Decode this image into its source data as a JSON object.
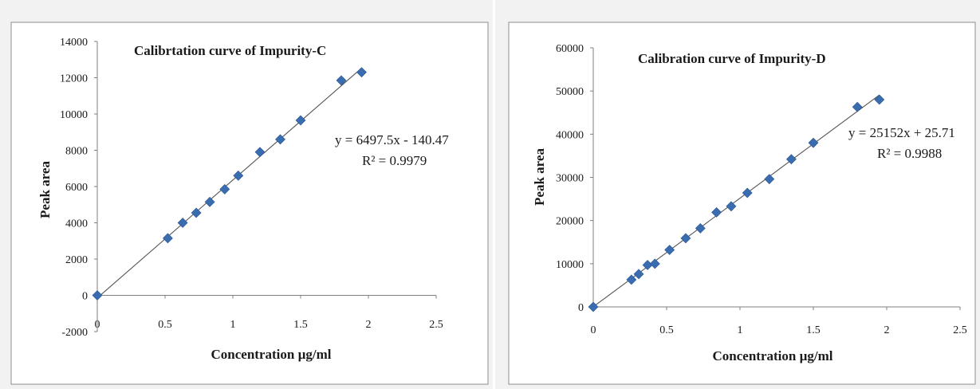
{
  "chart_data": [
    {
      "type": "scatter",
      "title": "Calibrtation curve of Impurity-C",
      "xlabel": "Concentration µg/ml",
      "ylabel": "Peak area",
      "xlim": [
        0,
        2.5
      ],
      "ylim": [
        -2000,
        14000
      ],
      "x_ticks": [
        "0",
        "0.5",
        "1",
        "1.5",
        "2",
        "2.5"
      ],
      "y_ticks": [
        "-2000",
        "0",
        "2000",
        "4000",
        "6000",
        "8000",
        "10000",
        "12000",
        "14000"
      ],
      "legend": "none",
      "grid": false,
      "trendline": {
        "equation": "y = 6497.5x - 140.47",
        "r_squared": "R² = 0.9979",
        "slope": 6497.5,
        "intercept": -140.47
      },
      "series": [
        {
          "marker": "diamond",
          "color": "#3a6cb0",
          "points": [
            {
              "x": 0,
              "y": 0
            },
            {
              "x": 0.52,
              "y": 3150
            },
            {
              "x": 0.63,
              "y": 4000
            },
            {
              "x": 0.73,
              "y": 4550
            },
            {
              "x": 0.83,
              "y": 5150
            },
            {
              "x": 0.94,
              "y": 5850
            },
            {
              "x": 1.04,
              "y": 6600
            },
            {
              "x": 1.2,
              "y": 7900
            },
            {
              "x": 1.35,
              "y": 8600
            },
            {
              "x": 1.5,
              "y": 9650
            },
            {
              "x": 1.8,
              "y": 11850
            },
            {
              "x": 1.95,
              "y": 12300
            }
          ]
        }
      ]
    },
    {
      "type": "scatter",
      "title": "Calibration curve of Impurity-D",
      "xlabel": "Concentration µg/ml",
      "ylabel": "Peak area",
      "xlim": [
        0,
        2.5
      ],
      "ylim": [
        0,
        60000
      ],
      "x_ticks": [
        "0",
        "0.5",
        "1",
        "1.5",
        "2",
        "2.5"
      ],
      "y_ticks": [
        "0",
        "10000",
        "20000",
        "30000",
        "40000",
        "50000",
        "60000"
      ],
      "legend": "none",
      "grid": false,
      "trendline": {
        "equation": "y = 25152x + 25.71",
        "r_squared": "R² = 0.9988",
        "slope": 25152,
        "intercept": 25.71
      },
      "series": [
        {
          "marker": "diamond",
          "color": "#3a6cb0",
          "points": [
            {
              "x": 0,
              "y": 0
            },
            {
              "x": 0.26,
              "y": 6300
            },
            {
              "x": 0.31,
              "y": 7600
            },
            {
              "x": 0.37,
              "y": 9700
            },
            {
              "x": 0.42,
              "y": 10000
            },
            {
              "x": 0.52,
              "y": 13200
            },
            {
              "x": 0.63,
              "y": 15900
            },
            {
              "x": 0.73,
              "y": 18200
            },
            {
              "x": 0.84,
              "y": 21900
            },
            {
              "x": 0.94,
              "y": 23300
            },
            {
              "x": 1.05,
              "y": 26400
            },
            {
              "x": 1.2,
              "y": 29600
            },
            {
              "x": 1.35,
              "y": 34200
            },
            {
              "x": 1.5,
              "y": 38000
            },
            {
              "x": 1.8,
              "y": 46300
            },
            {
              "x": 1.95,
              "y": 48000
            }
          ]
        }
      ]
    }
  ]
}
